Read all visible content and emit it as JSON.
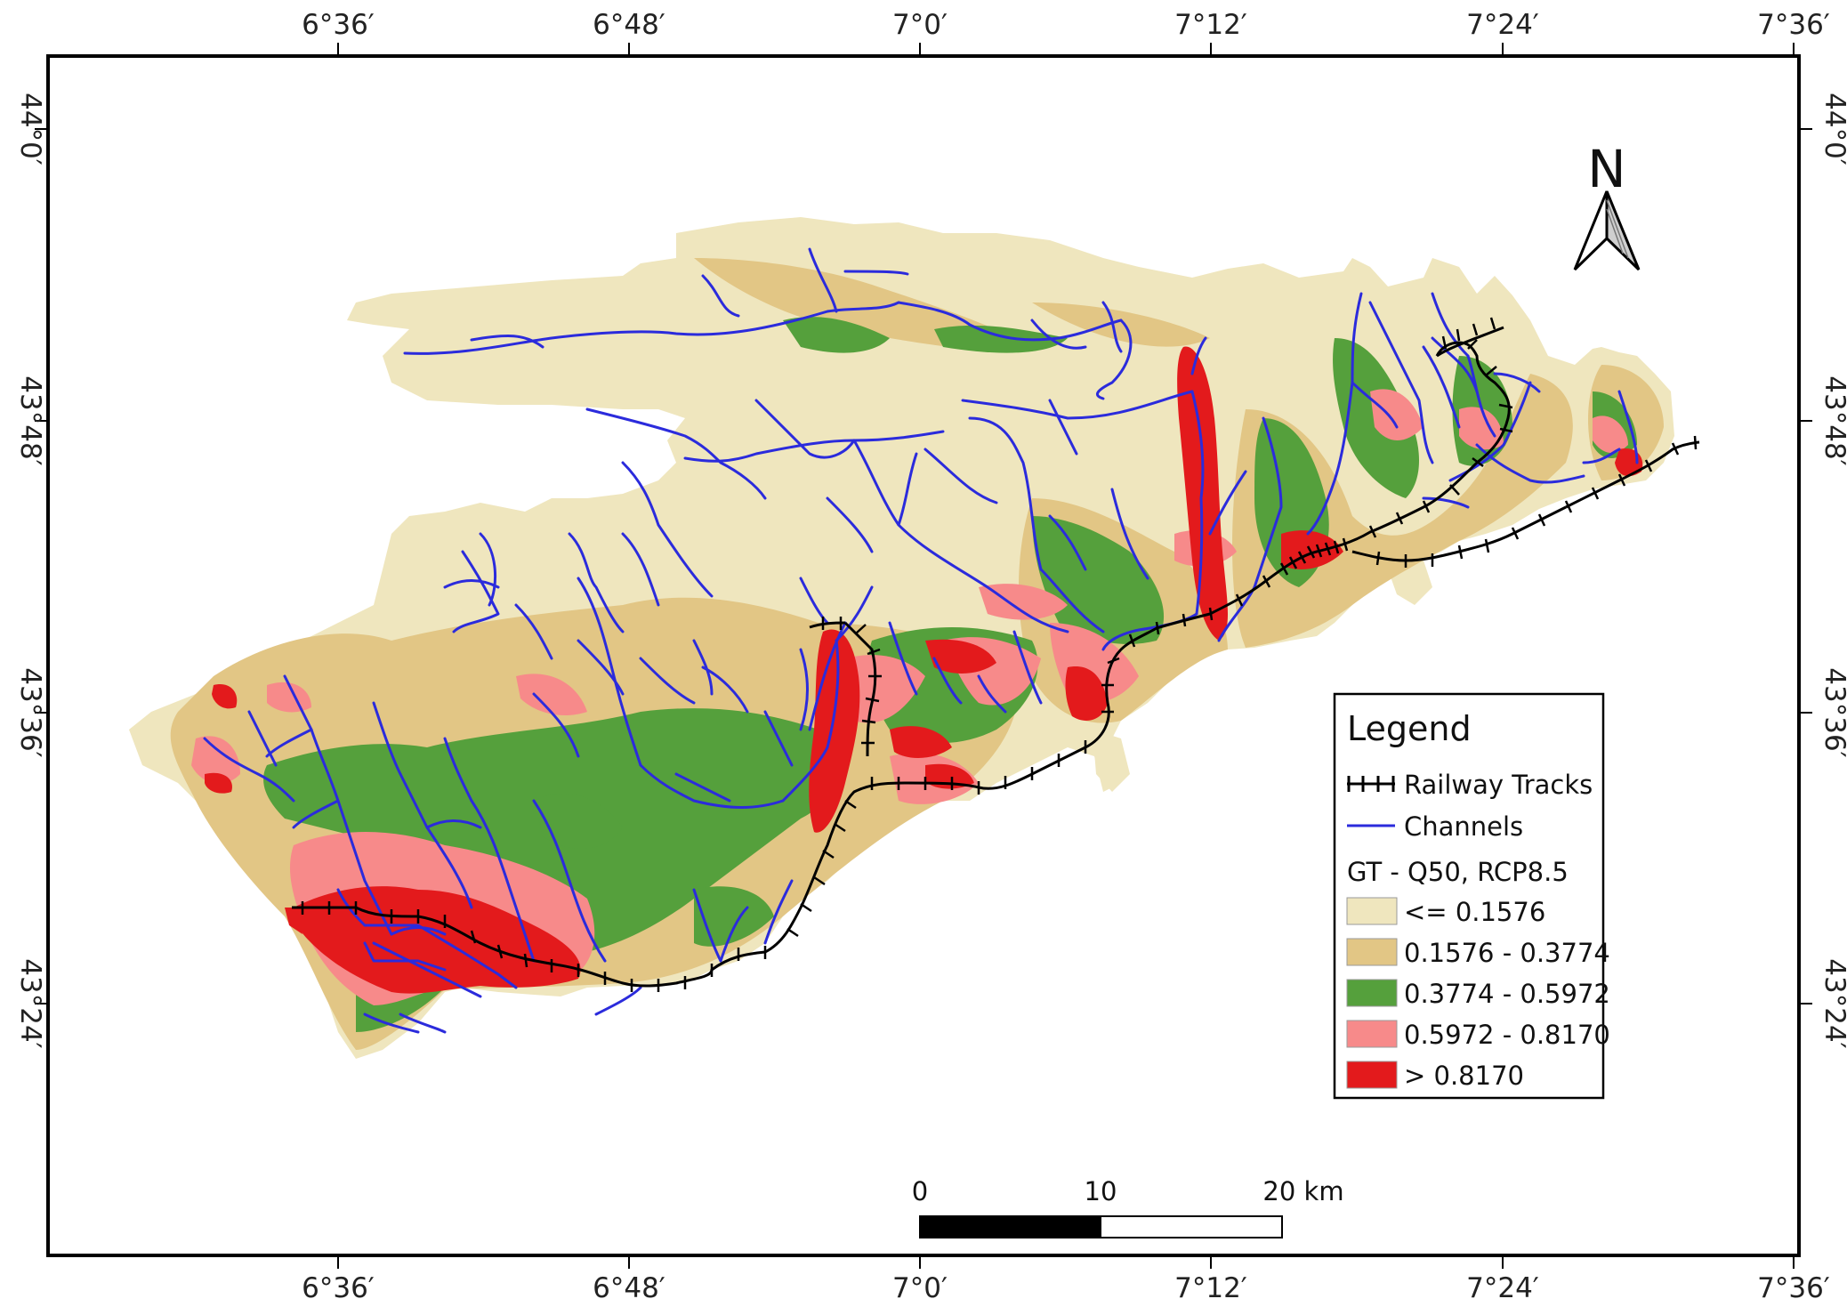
{
  "map": {
    "top_ticks": [
      "6°36′",
      "6°48′",
      "7°0′",
      "7°12′",
      "7°24′",
      "7°36′"
    ],
    "bottom_ticks": [
      "6°36′",
      "6°48′",
      "7°0′",
      "7°12′",
      "7°24′",
      "7°36′"
    ],
    "left_ticks": [
      "44°0′",
      "43°48′",
      "43°36′",
      "43°24′"
    ],
    "right_ticks": [
      "44°0′",
      "43°48′",
      "43°36′",
      "43°24′"
    ],
    "north_label": "N",
    "icons": [
      "north-arrow-icon",
      "railway-symbol-icon",
      "channel-symbol-icon"
    ]
  },
  "legend": {
    "title": "Legend",
    "railway_label": "Railway Tracks",
    "channels_label": "Channels",
    "layer_title": "GT - Q50, RCP8.5",
    "classes": [
      {
        "label": "<= 0.1576",
        "color": "#efe6be"
      },
      {
        "label": "0.1576 - 0.3774",
        "color": "#e2c685"
      },
      {
        "label": "0.3774 - 0.5972",
        "color": "#55a03c"
      },
      {
        "label": "0.5972 - 0.8170",
        "color": "#f78a8a"
      },
      {
        "label": "> 0.8170",
        "color": "#e31a1c"
      }
    ],
    "railway_color": "#000000",
    "channel_color": "#2b2bdc"
  },
  "scale_bar": {
    "labels": [
      "0",
      "10",
      "20 km"
    ]
  }
}
